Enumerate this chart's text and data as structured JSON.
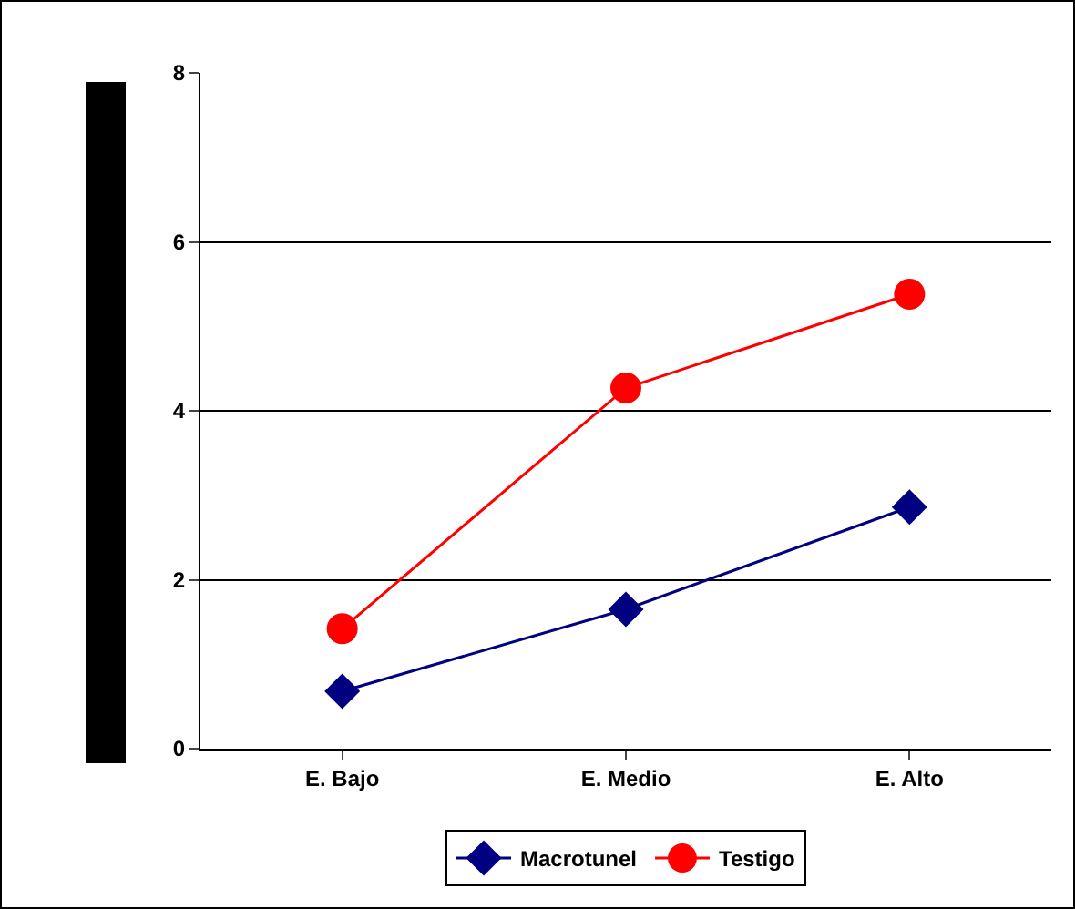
{
  "chart_data": {
    "type": "line",
    "categories": [
      "E. Bajo",
      "E. Medio",
      "E. Alto"
    ],
    "series": [
      {
        "name": "Macrotunel",
        "color": "#000080",
        "marker": "diamond",
        "values": [
          0.68,
          1.65,
          2.86
        ]
      },
      {
        "name": "Testigo",
        "color": "#ff0000",
        "marker": "circle",
        "values": [
          1.42,
          4.27,
          5.38
        ]
      }
    ],
    "ylim": [
      0,
      8
    ],
    "yticks": [
      0,
      2,
      4,
      6,
      8
    ],
    "grid": "y",
    "legend": "bottom",
    "line_style": "solid"
  }
}
